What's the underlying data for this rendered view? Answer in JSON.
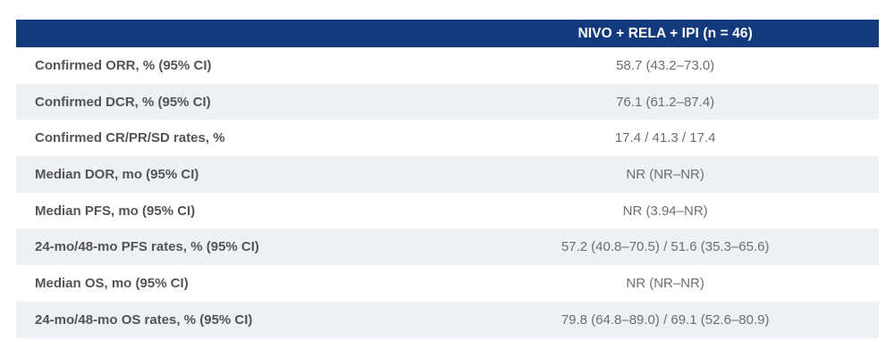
{
  "chart_data": {
    "type": "table",
    "title": "",
    "columns": [
      "",
      "NIVO + RELA + IPI (n = 46)"
    ],
    "rows": [
      {
        "label": "Confirmed ORR, % (95% CI)",
        "value": "58.7 (43.2–73.0)"
      },
      {
        "label": "Confirmed DCR, % (95% CI)",
        "value": "76.1 (61.2–87.4)"
      },
      {
        "label": "Confirmed CR/PR/SD rates, %",
        "value": "17.4 / 41.3 / 17.4"
      },
      {
        "label": "Median DOR, mo (95% CI)",
        "value": "NR (NR–NR)"
      },
      {
        "label": "Median PFS, mo (95% CI)",
        "value": "NR (3.94–NR)"
      },
      {
        "label": "24-mo/48-mo PFS rates, % (95% CI)",
        "value": "57.2 (40.8–70.5) / 51.6 (35.3–65.6)"
      },
      {
        "label": "Median OS, mo (95% CI)",
        "value": "NR (NR–NR)"
      },
      {
        "label": "24-mo/48-mo OS rates, % (95% CI)",
        "value": "79.8 (64.8–89.0) / 69.1 (52.6–80.9)"
      }
    ],
    "layout": {
      "striping": "alternate rows shaded starting with row 2",
      "value_alignment": "center",
      "header_alignment": "center over value column"
    }
  },
  "colors": {
    "header_bg": "#123a7d",
    "header_text": "#ffffff",
    "stripe_bg": "#edf0f4",
    "label_text": "#545454",
    "value_text": "#6e6e6e"
  }
}
